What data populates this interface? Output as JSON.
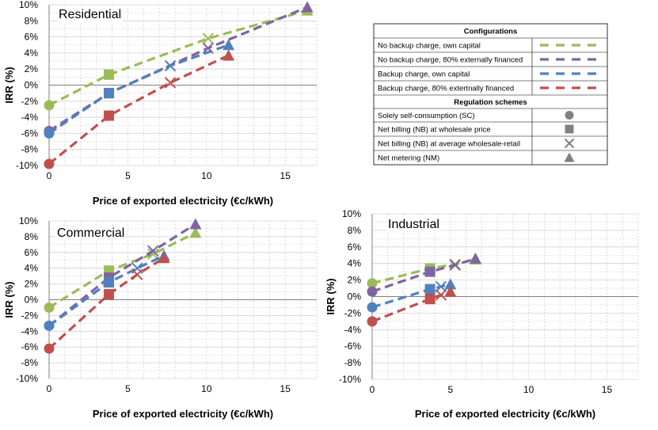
{
  "colors": {
    "green": "#9BBB59",
    "purple": "#8064A2",
    "blue": "#4F81BD",
    "red": "#C0504D",
    "marker_grey": "#808080",
    "grid": "#D0D0D0",
    "axis": "#808080"
  },
  "legend": {
    "configurations_title": "Configurations",
    "configurations": [
      {
        "label": "No backup charge, own capital",
        "color": "green"
      },
      {
        "label": "No backup charge, 80% externally financed",
        "color": "purple"
      },
      {
        "label": "Backup charge, own capital",
        "color": "blue"
      },
      {
        "label": "Backup charge, 80% extertnally financed",
        "color": "red"
      }
    ],
    "schemes_title": "Regulation schemes",
    "schemes": [
      {
        "label": "Solely self-consumption (SC)",
        "marker": "circle"
      },
      {
        "label": "Net billing (NB) at wholesale price",
        "marker": "square"
      },
      {
        "label": "Net billing (NB) at average wholesale-retail",
        "marker": "x"
      },
      {
        "label": "Net metering (NM)",
        "marker": "triangle"
      }
    ]
  },
  "chart_data": [
    {
      "type": "line",
      "title": "Residential",
      "xlabel": "Price of exported electricity (€c/kWh)",
      "ylabel": "IRR (%)",
      "xlim": [
        0,
        17
      ],
      "ylim": [
        -10,
        10
      ],
      "xticks": [
        "0",
        "5",
        "10",
        "15"
      ],
      "yticks": [
        "-10%",
        "-8%",
        "-6%",
        "-4%",
        "-2%",
        "0%",
        "2%",
        "4%",
        "6%",
        "8%",
        "10%"
      ],
      "grid": true,
      "series": [
        {
          "name": "No backup charge, own capital",
          "color": "green",
          "x": [
            0,
            3.8,
            10.1,
            16.4
          ],
          "y": [
            -2.5,
            1.3,
            5.8,
            9.3
          ]
        },
        {
          "name": "No backup charge, 80% externally financed",
          "color": "purple",
          "x": [
            0,
            3.8,
            10.1,
            16.4
          ],
          "y": [
            -5.7,
            -1.0,
            4.6,
            9.7
          ]
        },
        {
          "name": "Backup charge, own capital",
          "color": "blue",
          "x": [
            0,
            3.8,
            7.7,
            11.4
          ],
          "y": [
            -6.0,
            -1.0,
            2.4,
            5.0
          ]
        },
        {
          "name": "Backup charge, 80% extertnally financed",
          "color": "red",
          "x": [
            0,
            3.8,
            7.7,
            11.4
          ],
          "y": [
            -9.8,
            -3.8,
            0.3,
            3.7
          ]
        }
      ]
    },
    {
      "type": "line",
      "title": "Commercial",
      "xlabel": "Price of exported electricity (€c/kWh)",
      "ylabel": "IRR (%)",
      "xlim": [
        0,
        17
      ],
      "ylim": [
        -10,
        10
      ],
      "xticks": [
        "0",
        "5",
        "10",
        "15"
      ],
      "yticks": [
        "-10%",
        "-8%",
        "-6%",
        "-4%",
        "-2%",
        "0%",
        "2%",
        "4%",
        "6%",
        "8%",
        "10%"
      ],
      "grid": true,
      "series": [
        {
          "name": "No backup charge, own capital",
          "color": "green",
          "x": [
            0,
            3.8,
            6.6,
            9.3
          ],
          "y": [
            -1.0,
            3.7,
            5.8,
            8.5
          ]
        },
        {
          "name": "No backup charge, 80% externally financed",
          "color": "purple",
          "x": [
            0,
            3.8,
            6.6,
            9.3
          ],
          "y": [
            -3.3,
            2.8,
            6.2,
            9.6
          ]
        },
        {
          "name": "Backup charge, own capital",
          "color": "blue",
          "x": [
            0,
            3.8,
            5.6,
            7.3
          ],
          "y": [
            -3.3,
            2.2,
            4.0,
            5.6
          ]
        },
        {
          "name": "Backup charge, 80% extertnally financed",
          "color": "red",
          "x": [
            0,
            3.8,
            5.6,
            7.3
          ],
          "y": [
            -6.2,
            0.7,
            3.2,
            5.3
          ]
        }
      ]
    },
    {
      "type": "line",
      "title": "Industrial",
      "xlabel": "Price of exported electricity (€c/kWh)",
      "ylabel": "IRR (%)",
      "xlim": [
        0,
        17
      ],
      "ylim": [
        -10,
        10
      ],
      "xticks": [
        "0",
        "5",
        "10",
        "15"
      ],
      "yticks": [
        "-10%",
        "-8%",
        "-6%",
        "-4%",
        "-2%",
        "0%",
        "2%",
        "4%",
        "6%",
        "8%",
        "10%"
      ],
      "grid": true,
      "series": [
        {
          "name": "No backup charge, own capital",
          "color": "green",
          "x": [
            0,
            3.7,
            5.3,
            6.6
          ],
          "y": [
            1.6,
            3.4,
            3.9,
            4.5
          ]
        },
        {
          "name": "No backup charge, 80% externally financed",
          "color": "purple",
          "x": [
            0,
            3.7,
            5.3,
            6.6
          ],
          "y": [
            0.6,
            3.0,
            3.8,
            4.6
          ]
        },
        {
          "name": "Backup charge, own capital",
          "color": "blue",
          "x": [
            0,
            3.7,
            4.4,
            5.0
          ],
          "y": [
            -1.3,
            0.9,
            1.2,
            1.5
          ]
        },
        {
          "name": "Backup charge, 80% extertnally financed",
          "color": "red",
          "x": [
            0,
            3.7,
            4.4,
            5.0
          ],
          "y": [
            -3.0,
            -0.3,
            0.2,
            0.6
          ]
        }
      ]
    }
  ]
}
